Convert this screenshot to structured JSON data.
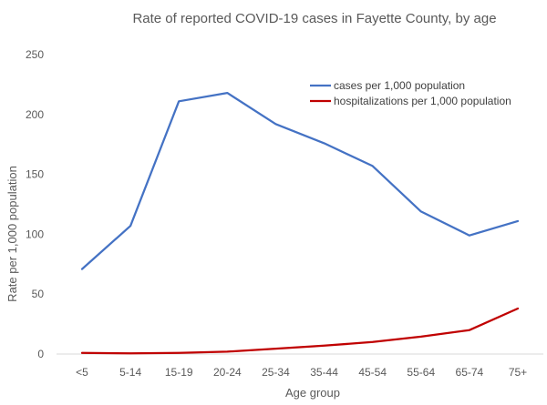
{
  "chart_data": {
    "type": "line",
    "title": "Rate of reported COVID-19 cases in Fayette County, by age",
    "xlabel": "Age group",
    "ylabel": "Rate per 1,000 population",
    "categories": [
      "<5",
      "5-14",
      "15-19",
      "20-24",
      "25-34",
      "35-44",
      "45-54",
      "55-64",
      "65-74",
      "75+"
    ],
    "ylim": [
      0,
      250
    ],
    "yticks": [
      "0",
      "50",
      "100",
      "150",
      "200",
      "250"
    ],
    "grid": false,
    "legend_position": "top-right",
    "series": [
      {
        "name": "cases per 1,000 population",
        "color": "#4472C4",
        "values": [
          71,
          107,
          211,
          218,
          192,
          176,
          157,
          119,
          99,
          111
        ]
      },
      {
        "name": "hospitalizations per 1,000 population",
        "color": "#C00000",
        "values": [
          1,
          0.5,
          1,
          2,
          4.5,
          7,
          10,
          14.5,
          20,
          38
        ]
      }
    ]
  }
}
